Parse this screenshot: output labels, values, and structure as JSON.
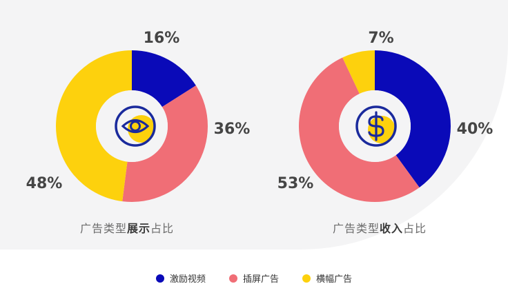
{
  "colors": {
    "激励视频": "#0a0ab8",
    "插屏广告": "#f06e76",
    "横幅广告": "#fdd10d",
    "icon": "#1a2a9c",
    "icon_shadow": "#fdd10d"
  },
  "chart_data": [
    {
      "type": "pie",
      "donut": true,
      "title": "广告类型展示占比",
      "title_prefix": "广告类型",
      "title_bold": "展示",
      "title_suffix": "占比",
      "categories": [
        "激励视频",
        "插屏广告",
        "横幅广告"
      ],
      "values": [
        16,
        36,
        48
      ],
      "labels": [
        "16%",
        "36%",
        "48%"
      ],
      "center_icon": "eye-icon"
    },
    {
      "type": "pie",
      "donut": true,
      "title": "广告类型收入占比",
      "title_prefix": "广告类型",
      "title_bold": "收入",
      "title_suffix": "占比",
      "categories": [
        "激励视频",
        "插屏广告",
        "横幅广告"
      ],
      "values": [
        40,
        53,
        7
      ],
      "labels": [
        "40%",
        "53%",
        "7%"
      ],
      "center_icon": "dollar-icon"
    }
  ],
  "legend": [
    {
      "label": "激励视频",
      "color": "#0a0ab8"
    },
    {
      "label": "插屏广告",
      "color": "#f06e76"
    },
    {
      "label": "横幅广告",
      "color": "#fdd10d"
    }
  ]
}
